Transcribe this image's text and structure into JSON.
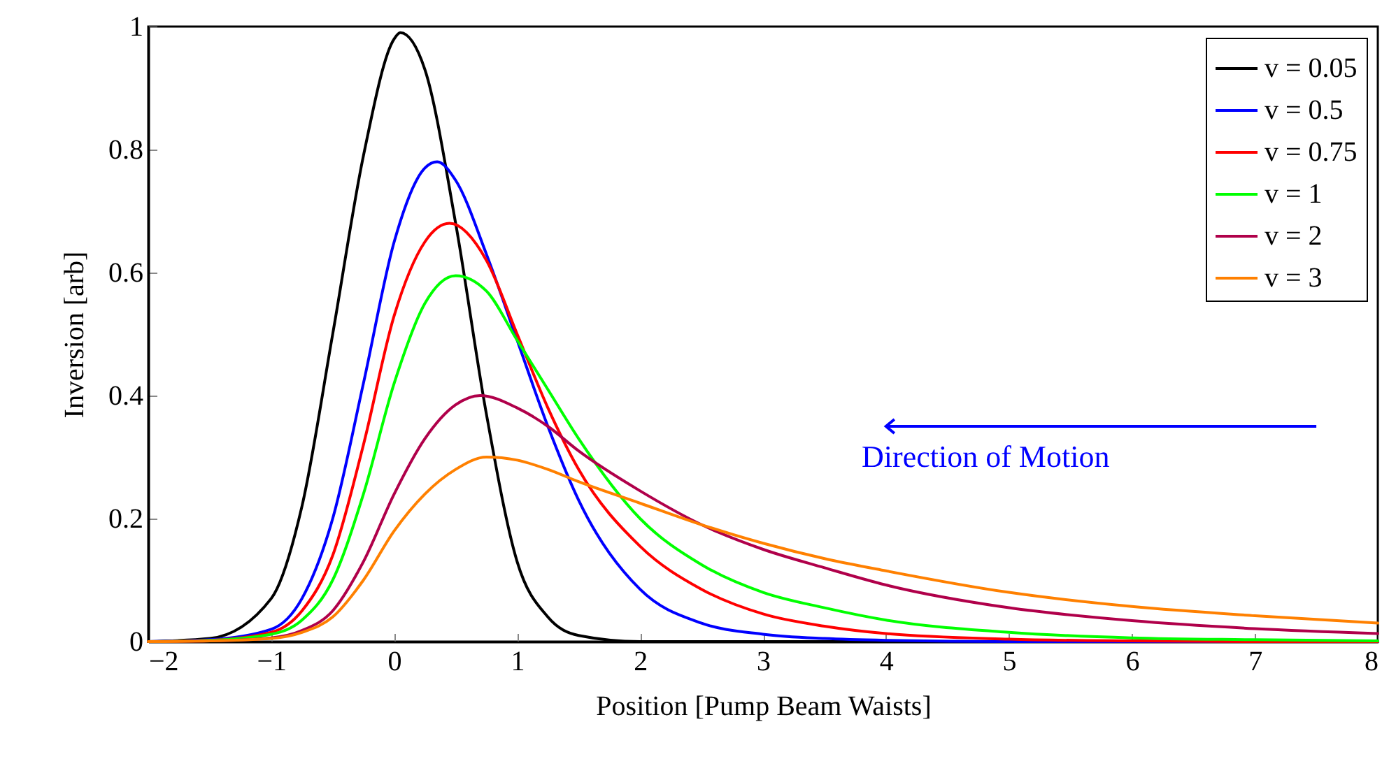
{
  "chart_data": {
    "type": "line",
    "xlabel": "Position [Pump Beam Waists]",
    "ylabel": "Inversion [arb]",
    "xlim": [
      -2,
      8
    ],
    "ylim": [
      0,
      1
    ],
    "xticks": [
      -2,
      -1,
      0,
      1,
      2,
      3,
      4,
      5,
      6,
      7,
      8
    ],
    "yticks": [
      0,
      0.2,
      0.4,
      0.6,
      0.8,
      1
    ],
    "grid": false,
    "legend": "top right",
    "marker": "none",
    "line_style": "solid",
    "annotations": [
      "Direction of Motion"
    ],
    "series": [
      {
        "name": "v = 0.05",
        "color": "#000000",
        "x": [
          -2,
          -1.5,
          -1,
          -0.75,
          -0.5,
          -0.25,
          0,
          0.05,
          0.25,
          0.5,
          0.75,
          1,
          1.25,
          1.5,
          2,
          3,
          4,
          5,
          6,
          7,
          8
        ],
        "values": [
          0,
          0.005,
          0.07,
          0.22,
          0.5,
          0.79,
          0.98,
          0.99,
          0.93,
          0.68,
          0.37,
          0.13,
          0.04,
          0.01,
          0,
          0,
          0,
          0,
          0,
          0,
          0
        ]
      },
      {
        "name": "v = 0.5",
        "color": "#0000ff",
        "x": [
          -2,
          -1.5,
          -1,
          -0.75,
          -0.5,
          -0.25,
          0,
          0.25,
          0.35,
          0.5,
          0.75,
          1,
          1.25,
          1.5,
          2,
          2.5,
          3,
          3.5,
          4,
          5,
          6,
          7,
          8
        ],
        "values": [
          0,
          0.003,
          0.02,
          0.07,
          0.2,
          0.42,
          0.65,
          0.77,
          0.78,
          0.75,
          0.63,
          0.49,
          0.35,
          0.23,
          0.085,
          0.03,
          0.012,
          0.005,
          0.002,
          0,
          0,
          0,
          0
        ]
      },
      {
        "name": "v = 0.75",
        "color": "#ff0000",
        "x": [
          -2,
          -1.5,
          -1,
          -0.75,
          -0.5,
          -0.25,
          0,
          0.25,
          0.45,
          0.75,
          1,
          1.25,
          1.5,
          2,
          2.5,
          3,
          3.5,
          4,
          5,
          6,
          7,
          8
        ],
        "values": [
          0,
          0.002,
          0.015,
          0.05,
          0.14,
          0.32,
          0.53,
          0.65,
          0.68,
          0.62,
          0.5,
          0.38,
          0.28,
          0.155,
          0.085,
          0.045,
          0.025,
          0.013,
          0.004,
          0.001,
          0,
          0
        ]
      },
      {
        "name": "v = 1",
        "color": "#00ff00",
        "x": [
          -2,
          -1.5,
          -1,
          -0.75,
          -0.5,
          -0.25,
          0,
          0.25,
          0.5,
          0.75,
          1,
          1.25,
          1.5,
          2,
          2.5,
          3,
          3.5,
          4,
          5,
          6,
          7,
          8
        ],
        "values": [
          0,
          0.002,
          0.012,
          0.035,
          0.1,
          0.24,
          0.42,
          0.55,
          0.595,
          0.57,
          0.49,
          0.41,
          0.33,
          0.2,
          0.125,
          0.08,
          0.055,
          0.035,
          0.015,
          0.006,
          0.003,
          0.001
        ]
      },
      {
        "name": "v = 2",
        "color": "#b0004a",
        "x": [
          -2,
          -1.5,
          -1,
          -0.75,
          -0.5,
          -0.25,
          0,
          0.25,
          0.5,
          0.7,
          1,
          1.25,
          1.5,
          2,
          2.5,
          3,
          3.5,
          4,
          5,
          6,
          7,
          8
        ],
        "values": [
          0,
          0.001,
          0.006,
          0.018,
          0.05,
          0.13,
          0.24,
          0.33,
          0.385,
          0.4,
          0.38,
          0.35,
          0.31,
          0.245,
          0.19,
          0.15,
          0.12,
          0.092,
          0.055,
          0.034,
          0.021,
          0.013
        ]
      },
      {
        "name": "v = 3",
        "color": "#ff8000",
        "x": [
          -2,
          -1.5,
          -1,
          -0.75,
          -0.5,
          -0.25,
          0,
          0.25,
          0.5,
          0.75,
          1,
          1.25,
          1.5,
          2,
          2.5,
          3,
          3.5,
          4,
          5,
          6,
          7,
          8
        ],
        "values": [
          0,
          0.001,
          0.005,
          0.015,
          0.04,
          0.1,
          0.18,
          0.24,
          0.28,
          0.3,
          0.295,
          0.28,
          0.26,
          0.225,
          0.19,
          0.16,
          0.135,
          0.115,
          0.08,
          0.057,
          0.042,
          0.03
        ]
      }
    ]
  }
}
